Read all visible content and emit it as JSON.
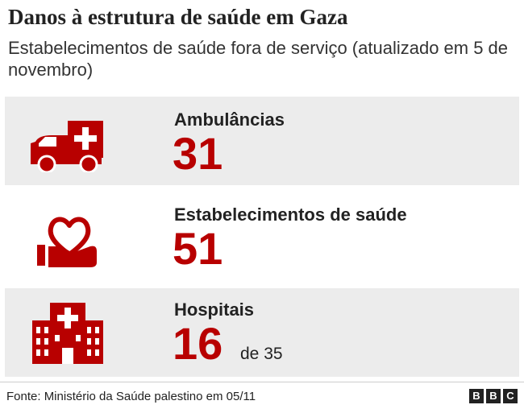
{
  "header": {
    "title": "Danos à estrutura de saúde em Gaza",
    "subtitle": "Estabelecimentos de saúde fora de serviço (atualizado em 5 de novembro)"
  },
  "rows": [
    {
      "icon": "ambulance-icon",
      "label": "Ambulâncias",
      "value": "31",
      "suffix": ""
    },
    {
      "icon": "heart-hand-icon",
      "label": "Estabelecimentos de saúde",
      "value": "51",
      "suffix": ""
    },
    {
      "icon": "hospital-icon",
      "label": "Hospitais",
      "value": "16",
      "suffix": "de 35"
    }
  ],
  "footer": {
    "source": "Fonte: Ministério da Saúde palestino em 05/11",
    "logo_letters": [
      "B",
      "B",
      "C"
    ]
  },
  "colors": {
    "accent": "#b80000",
    "row_shade": "#ececec"
  }
}
